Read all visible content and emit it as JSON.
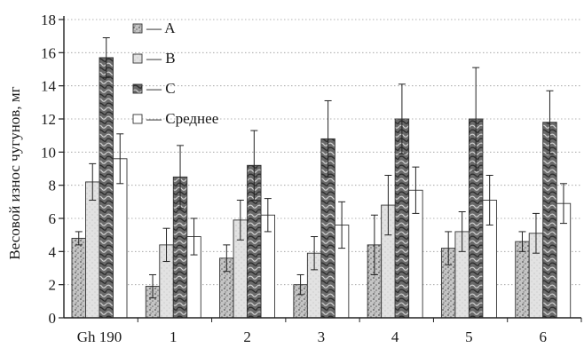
{
  "chart_data": {
    "type": "bar",
    "title": "",
    "xlabel": "",
    "ylabel": "Весовой износ чугунов, мг",
    "ylim": [
      0,
      18
    ],
    "yticks": [
      0,
      2,
      4,
      6,
      8,
      10,
      12,
      14,
      16,
      18
    ],
    "grid": "horizontal dotted",
    "legend_position": "top-left",
    "categories": [
      "Gh 190",
      "1",
      "2",
      "3",
      "4",
      "5",
      "6"
    ],
    "series": [
      {
        "name": "A",
        "color": "#9a9a9a",
        "pattern": "stipple",
        "values": [
          4.8,
          1.9,
          3.6,
          2.0,
          4.4,
          4.2,
          4.6
        ],
        "errors": [
          0.4,
          0.7,
          0.8,
          0.6,
          1.8,
          1.0,
          0.6
        ]
      },
      {
        "name": "B",
        "color": "#d8d8d8",
        "pattern": "light",
        "values": [
          8.2,
          4.4,
          5.9,
          3.9,
          6.8,
          5.2,
          5.1
        ],
        "errors": [
          1.1,
          1.0,
          1.2,
          1.0,
          1.8,
          1.2,
          1.2
        ]
      },
      {
        "name": "C",
        "color": "#555555",
        "pattern": "marble",
        "values": [
          15.7,
          8.5,
          9.2,
          10.8,
          12.0,
          12.0,
          11.8
        ],
        "errors": [
          1.2,
          1.9,
          2.1,
          2.3,
          2.1,
          3.1,
          1.9
        ]
      },
      {
        "name": "Среднее",
        "color": "#ffffff",
        "pattern": "none",
        "values": [
          9.6,
          4.9,
          6.2,
          5.6,
          7.7,
          7.1,
          6.9
        ],
        "errors": [
          1.5,
          1.1,
          1.0,
          1.4,
          1.4,
          1.5,
          1.2
        ]
      }
    ],
    "legend_dash": "—"
  }
}
